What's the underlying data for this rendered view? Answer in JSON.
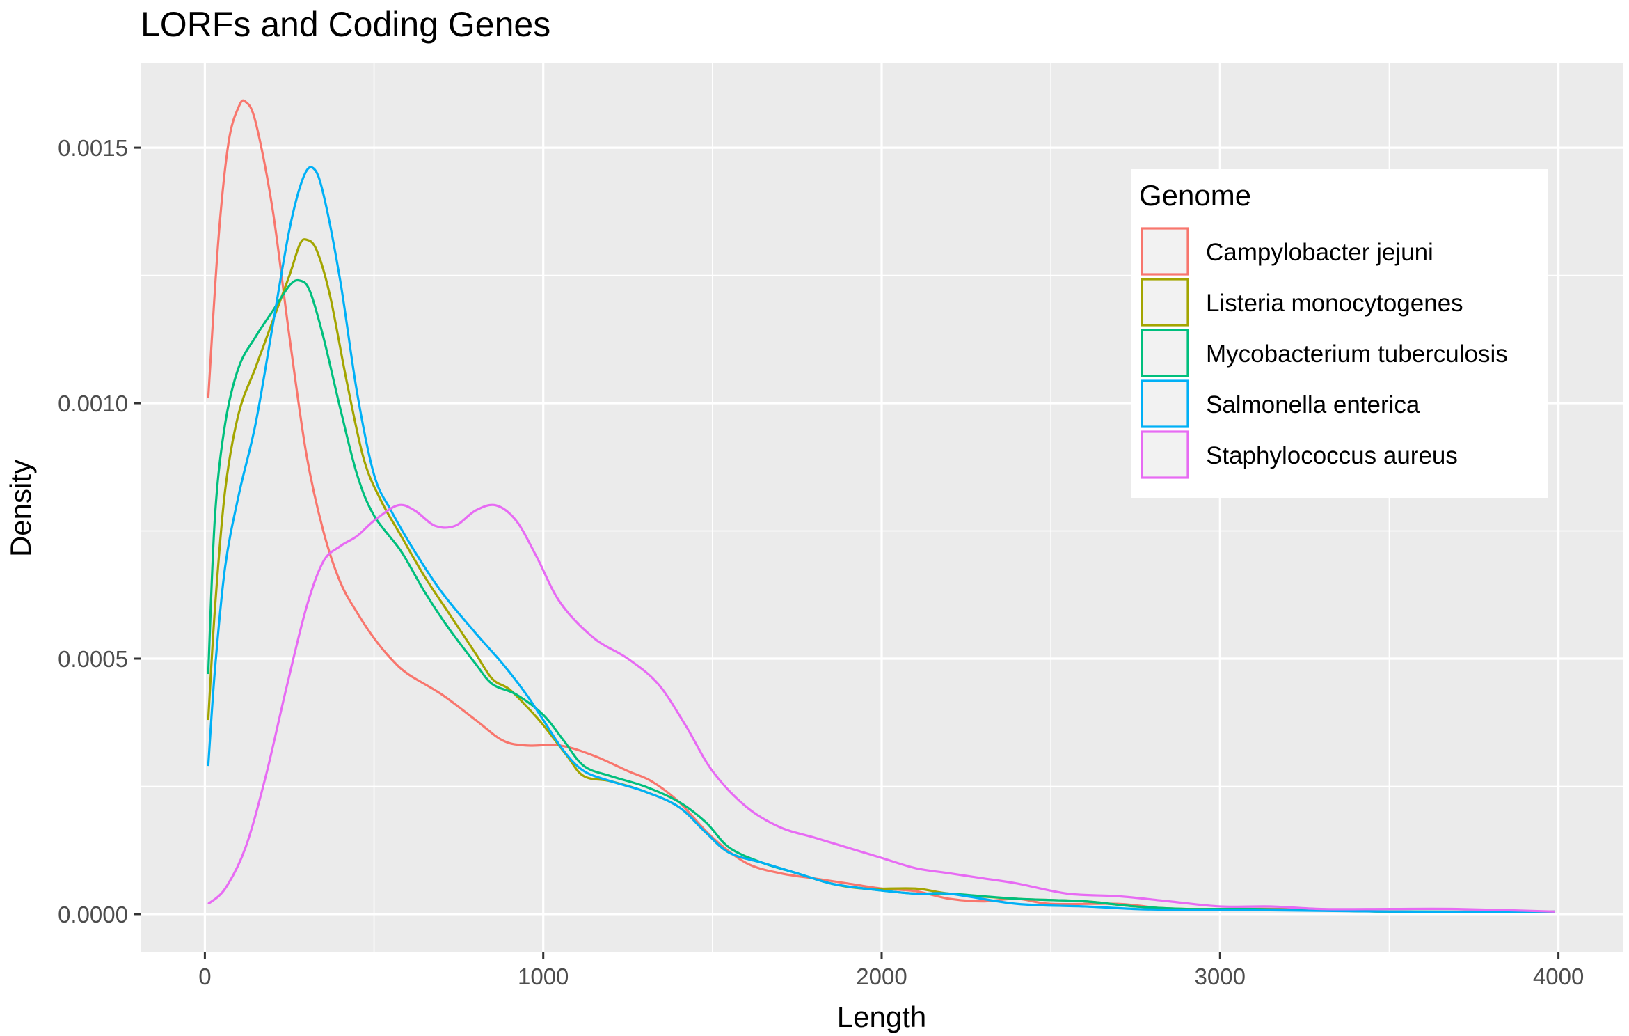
{
  "chart_data": {
    "type": "line",
    "title": "LORFs and Coding Genes",
    "xlabel": "Length",
    "ylabel": "Density",
    "xlim": [
      -190,
      4190
    ],
    "ylim": [
      -7.5e-05,
      0.001665
    ],
    "x_ticks": [
      0,
      1000,
      2000,
      3000,
      4000
    ],
    "x_tick_labels": [
      "0",
      "1000",
      "2000",
      "3000",
      "4000"
    ],
    "y_ticks": [
      0,
      0.0005,
      0.001,
      0.0015
    ],
    "y_tick_labels": [
      "0.0000",
      "0.0005",
      "0.0010",
      "0.0015"
    ],
    "grid": true,
    "background": "#ebebeb",
    "legend": {
      "title": "Genome",
      "position": "top-right"
    },
    "series": [
      {
        "name": "Campylobacter jejuni",
        "color": "#f8766d",
        "points": [
          [
            10,
            0.00101
          ],
          [
            40,
            0.00132
          ],
          [
            70,
            0.00151
          ],
          [
            100,
            0.00158
          ],
          [
            120,
            0.00159
          ],
          [
            150,
            0.00155
          ],
          [
            200,
            0.00138
          ],
          [
            250,
            0.00113
          ],
          [
            300,
            0.0009
          ],
          [
            350,
            0.00075
          ],
          [
            400,
            0.00065
          ],
          [
            450,
            0.00059
          ],
          [
            500,
            0.00054
          ],
          [
            550,
            0.0005
          ],
          [
            600,
            0.00047
          ],
          [
            700,
            0.00043
          ],
          [
            800,
            0.00038
          ],
          [
            880,
            0.00034
          ],
          [
            950,
            0.00033
          ],
          [
            1050,
            0.00033
          ],
          [
            1150,
            0.00031
          ],
          [
            1250,
            0.00028
          ],
          [
            1320,
            0.00026
          ],
          [
            1400,
            0.00022
          ],
          [
            1500,
            0.00015
          ],
          [
            1600,
            0.0001
          ],
          [
            1700,
            8e-05
          ],
          [
            1800,
            7e-05
          ],
          [
            1900,
            6e-05
          ],
          [
            2000,
            5e-05
          ],
          [
            2100,
            4.5e-05
          ],
          [
            2200,
            3e-05
          ],
          [
            2300,
            2.5e-05
          ],
          [
            2400,
            3e-05
          ],
          [
            2500,
            2e-05
          ],
          [
            2700,
            2e-05
          ],
          [
            2850,
            1e-05
          ],
          [
            3000,
            1e-05
          ],
          [
            3200,
            1e-05
          ],
          [
            3500,
            5e-06
          ],
          [
            3800,
            5e-06
          ],
          [
            3990,
            5e-06
          ]
        ]
      },
      {
        "name": "Listeria monocytogenes",
        "color": "#a3a500",
        "points": [
          [
            10,
            0.00038
          ],
          [
            30,
            0.0006
          ],
          [
            60,
            0.00083
          ],
          [
            100,
            0.00098
          ],
          [
            150,
            0.00107
          ],
          [
            200,
            0.00116
          ],
          [
            250,
            0.00125
          ],
          [
            280,
            0.00131
          ],
          [
            300,
            0.00132
          ],
          [
            330,
            0.0013
          ],
          [
            370,
            0.00121
          ],
          [
            420,
            0.00104
          ],
          [
            470,
            0.00089
          ],
          [
            520,
            0.00081
          ],
          [
            580,
            0.00074
          ],
          [
            650,
            0.00066
          ],
          [
            720,
            0.00059
          ],
          [
            800,
            0.00051
          ],
          [
            850,
            0.00046
          ],
          [
            900,
            0.00044
          ],
          [
            960,
            0.0004
          ],
          [
            1000,
            0.00037
          ],
          [
            1070,
            0.00031
          ],
          [
            1120,
            0.00027
          ],
          [
            1200,
            0.00026
          ],
          [
            1300,
            0.00024
          ],
          [
            1400,
            0.00021
          ],
          [
            1480,
            0.00016
          ],
          [
            1550,
            0.00012
          ],
          [
            1650,
            0.0001
          ],
          [
            1750,
            8e-05
          ],
          [
            1850,
            6e-05
          ],
          [
            1950,
            5e-05
          ],
          [
            2100,
            5e-05
          ],
          [
            2200,
            4e-05
          ],
          [
            2400,
            3e-05
          ],
          [
            2600,
            2.5e-05
          ],
          [
            2750,
            1.5e-05
          ],
          [
            2900,
            1e-05
          ],
          [
            3100,
            1e-05
          ],
          [
            3500,
            5e-06
          ],
          [
            3990,
            5e-06
          ]
        ]
      },
      {
        "name": "Mycobacterium tuberculosis",
        "color": "#00bf7d",
        "points": [
          [
            10,
            0.00047
          ],
          [
            30,
            0.00078
          ],
          [
            60,
            0.00096
          ],
          [
            100,
            0.00107
          ],
          [
            150,
            0.00113
          ],
          [
            200,
            0.00118
          ],
          [
            250,
            0.00123
          ],
          [
            280,
            0.00124
          ],
          [
            310,
            0.00122
          ],
          [
            350,
            0.00113
          ],
          [
            400,
            0.00099
          ],
          [
            450,
            0.00086
          ],
          [
            500,
            0.00078
          ],
          [
            580,
            0.00071
          ],
          [
            650,
            0.00063
          ],
          [
            720,
            0.00056
          ],
          [
            800,
            0.00049
          ],
          [
            850,
            0.00045
          ],
          [
            920,
            0.00043
          ],
          [
            1000,
            0.00039
          ],
          [
            1060,
            0.00034
          ],
          [
            1120,
            0.00029
          ],
          [
            1200,
            0.00027
          ],
          [
            1300,
            0.00025
          ],
          [
            1400,
            0.00022
          ],
          [
            1480,
            0.00018
          ],
          [
            1550,
            0.00013
          ],
          [
            1650,
            0.0001
          ],
          [
            1750,
            8e-05
          ],
          [
            1850,
            6e-05
          ],
          [
            1950,
            5e-05
          ],
          [
            2100,
            4e-05
          ],
          [
            2200,
            4e-05
          ],
          [
            2400,
            3e-05
          ],
          [
            2600,
            2.5e-05
          ],
          [
            2750,
            1.5e-05
          ],
          [
            2900,
            1e-05
          ],
          [
            3100,
            1e-05
          ],
          [
            3500,
            5e-06
          ],
          [
            3990,
            5e-06
          ]
        ]
      },
      {
        "name": "Salmonella enterica",
        "color": "#00b0f6",
        "points": [
          [
            10,
            0.00029
          ],
          [
            30,
            0.00048
          ],
          [
            60,
            0.00068
          ],
          [
            100,
            0.00082
          ],
          [
            150,
            0.00096
          ],
          [
            200,
            0.00115
          ],
          [
            250,
            0.00134
          ],
          [
            290,
            0.00144
          ],
          [
            320,
            0.00146
          ],
          [
            350,
            0.00141
          ],
          [
            400,
            0.00124
          ],
          [
            450,
            0.00102
          ],
          [
            500,
            0.00086
          ],
          [
            550,
            0.00079
          ],
          [
            620,
            0.00071
          ],
          [
            700,
            0.00063
          ],
          [
            800,
            0.00055
          ],
          [
            880,
            0.00049
          ],
          [
            950,
            0.00043
          ],
          [
            1000,
            0.00038
          ],
          [
            1060,
            0.00032
          ],
          [
            1120,
            0.00028
          ],
          [
            1200,
            0.00026
          ],
          [
            1300,
            0.00024
          ],
          [
            1400,
            0.00021
          ],
          [
            1480,
            0.00016
          ],
          [
            1550,
            0.00012
          ],
          [
            1650,
            0.0001
          ],
          [
            1750,
            8e-05
          ],
          [
            1850,
            6e-05
          ],
          [
            1950,
            5e-05
          ],
          [
            2100,
            4e-05
          ],
          [
            2200,
            4e-05
          ],
          [
            2400,
            2e-05
          ],
          [
            2600,
            1.5e-05
          ],
          [
            2750,
            1e-05
          ],
          [
            2900,
            8e-06
          ],
          [
            3100,
            8e-06
          ],
          [
            3500,
            5e-06
          ],
          [
            3990,
            5e-06
          ]
        ]
      },
      {
        "name": "Staphylococcus aureus",
        "color": "#e76bf3",
        "points": [
          [
            10,
            2e-05
          ],
          [
            60,
            5e-05
          ],
          [
            120,
            0.00013
          ],
          [
            180,
            0.00027
          ],
          [
            240,
            0.00044
          ],
          [
            300,
            0.0006
          ],
          [
            350,
            0.00069
          ],
          [
            400,
            0.00072
          ],
          [
            450,
            0.00074
          ],
          [
            500,
            0.00077
          ],
          [
            570,
            0.0008
          ],
          [
            620,
            0.00079
          ],
          [
            680,
            0.00076
          ],
          [
            740,
            0.00076
          ],
          [
            800,
            0.00079
          ],
          [
            860,
            0.0008
          ],
          [
            920,
            0.00077
          ],
          [
            980,
            0.0007
          ],
          [
            1050,
            0.00061
          ],
          [
            1150,
            0.00054
          ],
          [
            1250,
            0.0005
          ],
          [
            1340,
            0.00045
          ],
          [
            1420,
            0.00037
          ],
          [
            1500,
            0.00028
          ],
          [
            1600,
            0.00021
          ],
          [
            1700,
            0.00017
          ],
          [
            1800,
            0.00015
          ],
          [
            1900,
            0.00013
          ],
          [
            2000,
            0.00011
          ],
          [
            2100,
            9e-05
          ],
          [
            2200,
            8e-05
          ],
          [
            2300,
            7e-05
          ],
          [
            2400,
            6e-05
          ],
          [
            2550,
            4e-05
          ],
          [
            2700,
            3.5e-05
          ],
          [
            2850,
            2.5e-05
          ],
          [
            3000,
            1.5e-05
          ],
          [
            3150,
            1.5e-05
          ],
          [
            3300,
            1e-05
          ],
          [
            3500,
            1e-05
          ],
          [
            3700,
            1e-05
          ],
          [
            3990,
            5e-06
          ]
        ]
      }
    ]
  }
}
